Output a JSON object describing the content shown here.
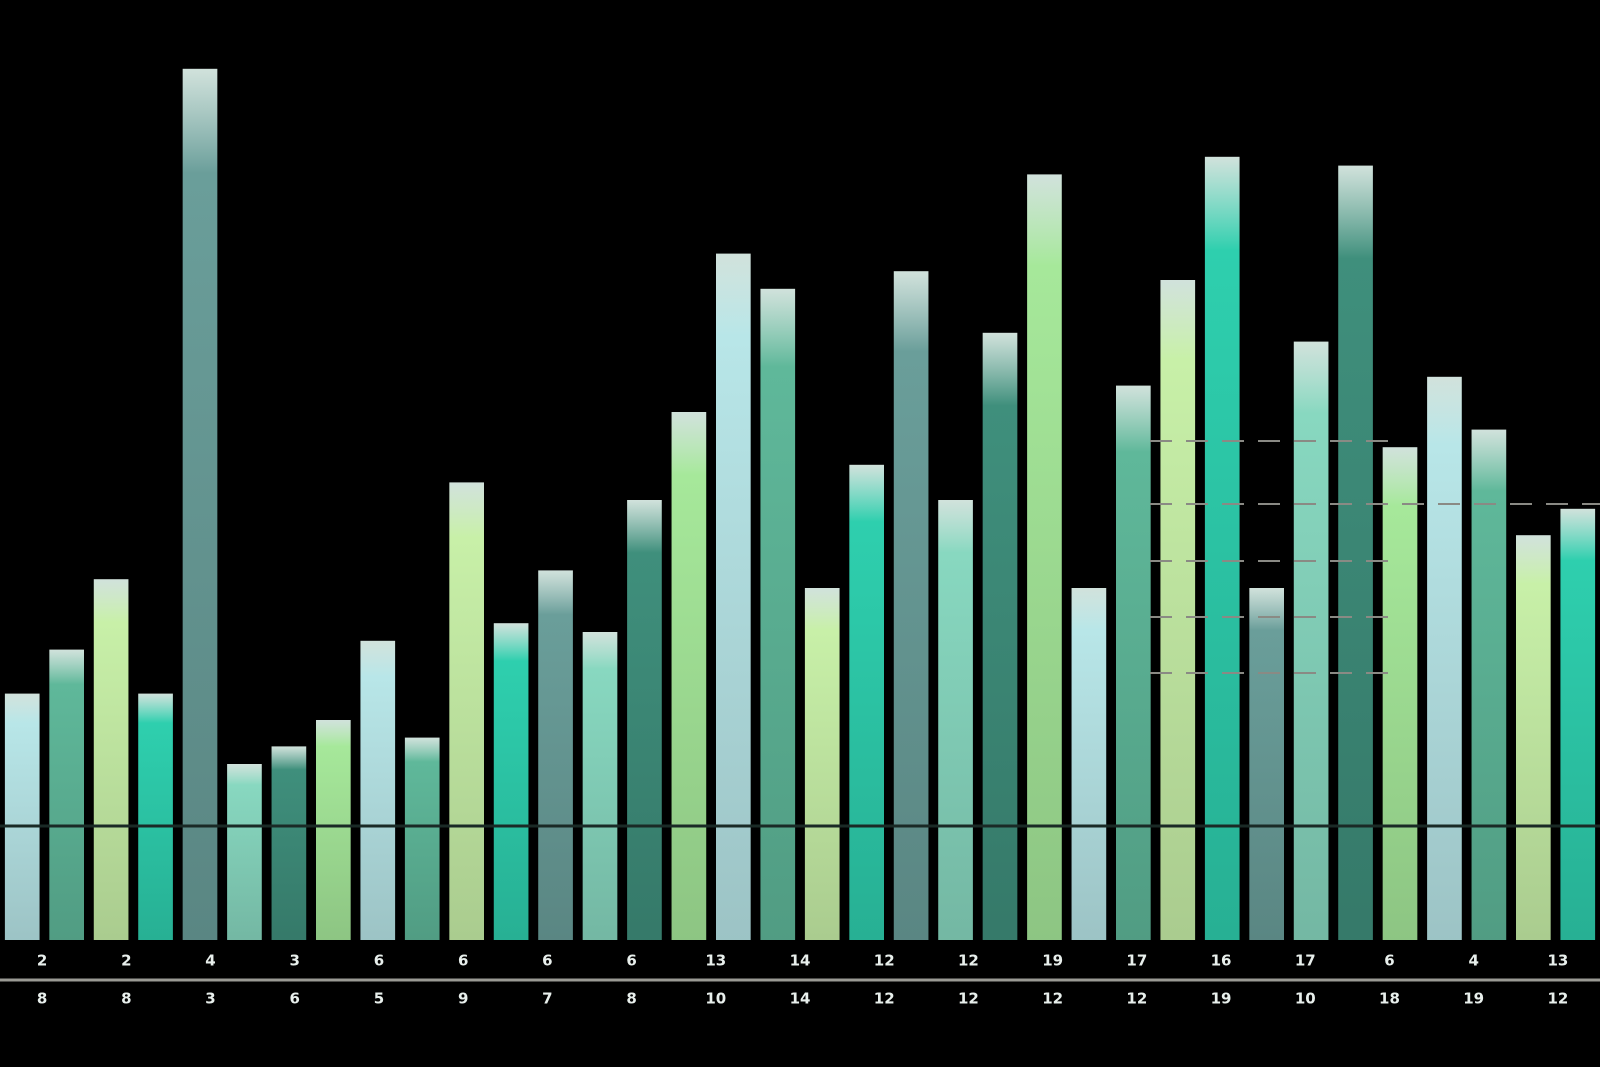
{
  "chart_data": {
    "type": "bar",
    "values": [
      28,
      33,
      41,
      28,
      99,
      20,
      22,
      25,
      34,
      23,
      52,
      36,
      42,
      35,
      50,
      60,
      78,
      74,
      40,
      54,
      76,
      50,
      69,
      87,
      40,
      63,
      75,
      89,
      40,
      68,
      88,
      56,
      64,
      58,
      46,
      49
    ],
    "palette": [
      "#b8e6e8",
      "#5fb89a",
      "#c8f0a8",
      "#2ecfae",
      "#6a9e9a",
      "#88d8c0",
      "#3f8f7c",
      "#a6e89a"
    ],
    "ylim": [
      0,
      100
    ],
    "labels": {
      "top": [
        "2",
        "2",
        "4",
        "3",
        "6",
        "6",
        "6",
        "6",
        "13",
        "14",
        "12",
        "12",
        "19",
        "17",
        "16",
        "17",
        "6",
        "4",
        "13"
      ],
      "bottom": [
        "8",
        "8",
        "3",
        "6",
        "5",
        "9",
        "7",
        "8",
        "10",
        "14",
        "12",
        "12",
        "12",
        "12",
        "19",
        "10",
        "18",
        "19",
        "12"
      ]
    }
  }
}
